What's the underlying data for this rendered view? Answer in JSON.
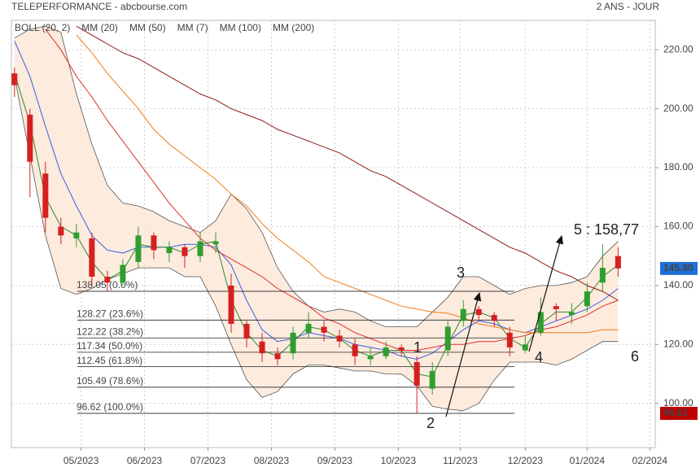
{
  "chart_data": {
    "type": "candlestick",
    "title": "TELEPERFORMANCE - abcbourse.com",
    "subtitle": "2 ANS - JOUR",
    "xlim": [
      -0.2,
      41.4
    ],
    "xticks": [
      {
        "value": 4.3,
        "label": "05/2023"
      },
      {
        "value": 8.4,
        "label": "06/2023"
      },
      {
        "value": 12.5,
        "label": "07/2023"
      },
      {
        "value": 16.6,
        "label": "08/2023"
      },
      {
        "value": 20.7,
        "label": "09/2023"
      },
      {
        "value": 24.8,
        "label": "10/2023"
      },
      {
        "value": 28.8,
        "label": "11/2023"
      },
      {
        "value": 33,
        "label": "12/2023"
      },
      {
        "value": 37,
        "label": "01/2024"
      },
      {
        "value": 41.05,
        "label": "02/2024"
      }
    ],
    "ylim": [
      85,
      230
    ],
    "yticks": [
      {
        "value": 100,
        "label": "100.00"
      },
      {
        "value": 120,
        "label": "120.00"
      },
      {
        "value": 140,
        "label": "140.00"
      },
      {
        "value": 160,
        "label": "160.00"
      },
      {
        "value": 180,
        "label": "180.00"
      },
      {
        "value": 200,
        "label": "200.00"
      },
      {
        "value": 220,
        "label": "220.00"
      }
    ],
    "grid": true,
    "up_color": "#2e9e2e",
    "down_color": "#d62020",
    "ohlc": {
      "open": [
        212,
        198,
        178,
        160,
        156,
        156,
        143,
        141,
        148,
        157,
        151,
        153,
        150,
        154,
        140,
        127,
        121,
        117,
        117,
        124,
        126,
        123,
        120,
        115,
        116,
        119,
        114,
        105,
        118,
        128,
        132,
        130,
        124,
        118,
        124,
        133,
        130,
        133,
        141,
        150
      ],
      "high": [
        214,
        200,
        182,
        163,
        161,
        158,
        145,
        149,
        160,
        158,
        155,
        154,
        158,
        158,
        144,
        128,
        124,
        119,
        126,
        131,
        128,
        125,
        122,
        119,
        121,
        120,
        116,
        114,
        128,
        135,
        133,
        131,
        126,
        123,
        136,
        134,
        134,
        141,
        154,
        153
      ],
      "low": [
        204,
        170,
        158,
        154,
        153,
        140,
        138,
        140,
        146,
        149,
        148,
        146,
        148,
        151,
        124,
        119,
        114,
        113,
        115,
        122,
        121,
        119,
        113,
        113,
        115,
        116,
        96.62,
        103,
        116,
        126,
        128,
        126,
        116,
        117,
        123,
        128,
        127,
        131,
        138,
        143
      ],
      "close": [
        208,
        182,
        163,
        157,
        158,
        143,
        141,
        147,
        157,
        152,
        153,
        150,
        155,
        155,
        127,
        122,
        117,
        115,
        124,
        127,
        124,
        121,
        116,
        116,
        119,
        118,
        106,
        111,
        126,
        132,
        130,
        128,
        119,
        120,
        131,
        132,
        131,
        138,
        146,
        145.8
      ]
    },
    "series": [
      {
        "name": "BOLL (20, 2)",
        "color": "#555555",
        "fill": "#fde6d6",
        "upper": [
          224,
          227,
          228,
          226,
          205,
          188,
          174,
          168,
          167,
          165,
          162,
          160,
          158,
          162,
          171,
          166,
          158,
          146,
          138,
          133,
          131,
          132,
          131,
          128,
          126,
          126,
          126,
          131,
          136,
          143,
          143,
          140,
          137,
          139,
          140,
          140,
          141,
          143,
          150,
          155
        ],
        "lower": [
          211,
          184,
          157,
          139,
          137,
          139,
          142,
          144,
          146,
          146,
          146,
          143,
          143,
          133,
          120,
          108,
          102,
          104,
          110,
          113,
          113,
          112,
          111,
          111,
          110,
          110,
          106,
          99,
          98,
          97.5,
          100,
          108,
          114,
          114,
          114,
          113,
          115,
          118,
          121,
          121
        ]
      },
      {
        "name": "MM (20)",
        "color": "#3b5ee0",
        "values": [
          223,
          211,
          194,
          178,
          167,
          157,
          152,
          151,
          153,
          153,
          153,
          154,
          154,
          153,
          147,
          135,
          125,
          121,
          122,
          124,
          123,
          122,
          120,
          119,
          118,
          116,
          115,
          117,
          121,
          125,
          128,
          127,
          125,
          124,
          126,
          128,
          130,
          132,
          135,
          139
        ]
      },
      {
        "name": "MM (50)",
        "color": "#e0302a",
        "values": [
          null,
          null,
          227,
          220,
          211,
          204,
          196,
          189,
          182,
          175,
          168,
          162,
          156,
          152,
          149,
          146,
          143,
          139,
          136,
          133,
          129,
          127,
          124,
          122,
          120,
          118,
          118,
          119,
          120,
          120,
          121,
          121,
          122,
          123,
          125,
          126,
          128,
          130,
          133,
          135
        ]
      },
      {
        "name": "MM (7)",
        "color": "#2a8a2a",
        "values": [
          212,
          195,
          170,
          160,
          157,
          148,
          142,
          145,
          154,
          153,
          153,
          151,
          154,
          155,
          135,
          124,
          118,
          116,
          121,
          126,
          125,
          122,
          118,
          116,
          118,
          118,
          110,
          109,
          120,
          130,
          131,
          129,
          122,
          119,
          127,
          131,
          131,
          136,
          143,
          147
        ]
      },
      {
        "name": "MM (100)",
        "color": "#f07d18",
        "values": [
          null,
          null,
          null,
          null,
          225,
          219,
          212,
          206,
          200,
          193,
          188,
          184,
          180,
          176,
          171,
          167,
          161,
          156,
          152,
          148,
          143,
          141,
          139,
          137,
          135,
          133,
          132,
          131,
          130.6,
          129,
          127,
          126,
          125,
          124,
          124,
          124,
          124,
          124,
          125,
          125
        ]
      },
      {
        "name": "MM (200)",
        "color": "#8b1a1a",
        "values": [
          null,
          null,
          null,
          null,
          228,
          225,
          222,
          219,
          217,
          214,
          211,
          208,
          205,
          203,
          200,
          198,
          196,
          193,
          191,
          189,
          187,
          185,
          182,
          179,
          177,
          174,
          171,
          168,
          165,
          162,
          159,
          156,
          153,
          151,
          148,
          145,
          143,
          140,
          138,
          135
        ]
      }
    ],
    "fibonacci": [
      {
        "value": 138.05,
        "label": "138.05 (0.0%)"
      },
      {
        "value": 128.27,
        "label": "128.27 (23.6%)"
      },
      {
        "value": 122.22,
        "label": "122.22 (38.2%)"
      },
      {
        "value": 117.34,
        "label": "117.34 (50.0%)"
      },
      {
        "value": 112.45,
        "label": "112.45 (61.8%)"
      },
      {
        "value": 105.49,
        "label": "105.49 (78.6%)"
      },
      {
        "value": 96.62,
        "label": "96.62 (100.0%)"
      }
    ],
    "price_tags": [
      {
        "value": 145.8,
        "label": "145.80",
        "color": "#1e6fd9"
      },
      {
        "value": 96.62,
        "label": "96.62",
        "color": "#c00000"
      }
    ],
    "annotations": [
      "1",
      "2",
      "3",
      "4",
      "5 : 158,77",
      "6"
    ]
  }
}
